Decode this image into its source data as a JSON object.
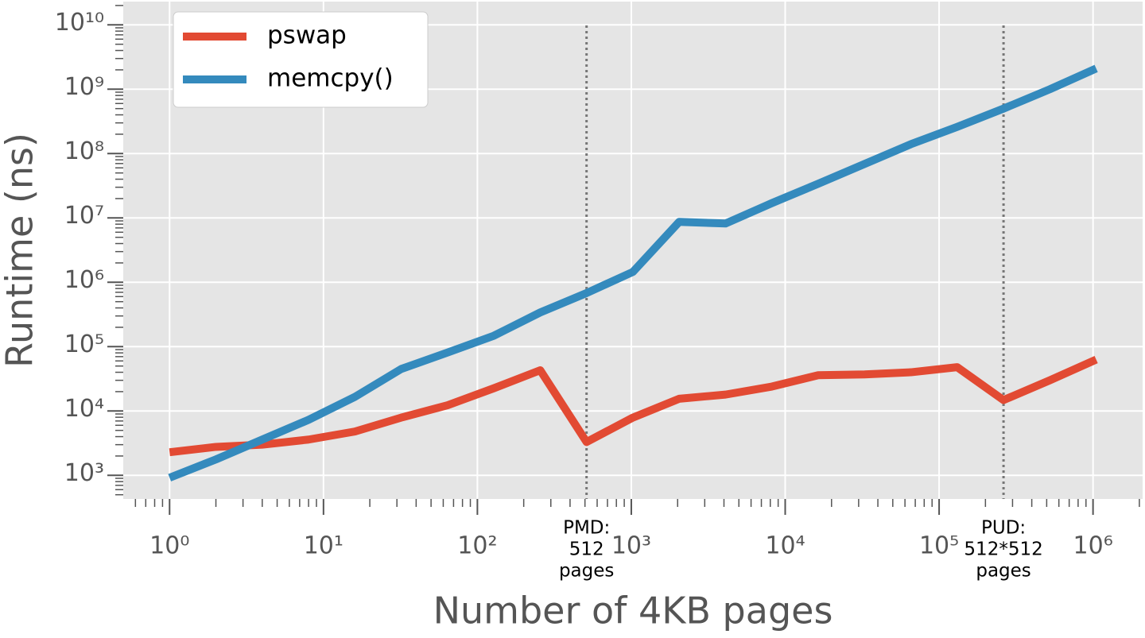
{
  "chart_data": {
    "type": "line",
    "x_label": "Number of 4KB pages",
    "y_label": "Runtime (ns)",
    "x": [
      1,
      2,
      4,
      8,
      16,
      32,
      64,
      128,
      256,
      512,
      1024,
      2048,
      4096,
      8192,
      16384,
      32768,
      65536,
      131072,
      262144,
      524288,
      1048576
    ],
    "series": [
      {
        "name": "pswap",
        "color": "#e24a33",
        "values": [
          2290,
          2770,
          3000,
          3600,
          4800,
          7900,
          12300,
          22600,
          43000,
          3300,
          7900,
          15500,
          18000,
          24000,
          36000,
          37000,
          40000,
          48000,
          14800,
          30000,
          63000
        ]
      },
      {
        "name": "memcpy()",
        "color": "#348abd",
        "values": [
          920,
          1770,
          3600,
          7300,
          16600,
          45000,
          81000,
          148000,
          340000,
          680000,
          1450000,
          8700000,
          8200000,
          17000000,
          34000000,
          69000000,
          140000000,
          260000000,
          500000000,
          1000000000,
          2100000000
        ]
      }
    ],
    "xscale": "log",
    "yscale": "log",
    "xlim": [
      0.5,
      2100000
    ],
    "ylim": [
      430,
      23000000000
    ],
    "xticks": [
      {
        "value": 1,
        "label": "10⁰"
      },
      {
        "value": 10,
        "label": "10¹"
      },
      {
        "value": 100,
        "label": "10²"
      },
      {
        "value": 1000,
        "label": "10³"
      },
      {
        "value": 10000,
        "label": "10⁴"
      },
      {
        "value": 100000,
        "label": "10⁵"
      },
      {
        "value": 1000000,
        "label": "10⁶"
      }
    ],
    "yticks": [
      {
        "value": 1000,
        "label": "10³"
      },
      {
        "value": 10000,
        "label": "10⁴"
      },
      {
        "value": 100000,
        "label": "10⁵"
      },
      {
        "value": 1000000,
        "label": "10⁶"
      },
      {
        "value": 10000000,
        "label": "10⁷"
      },
      {
        "value": 100000000,
        "label": "10⁸"
      },
      {
        "value": 1000000000,
        "label": "10⁹"
      },
      {
        "value": 10000000000,
        "label": "10¹⁰"
      }
    ],
    "grid": true,
    "legend": "upper left",
    "annotations": [
      {
        "x": 512,
        "text": [
          "PMD:",
          "512",
          "pages"
        ]
      },
      {
        "x": 262144,
        "text": [
          "PUD:",
          "512*512",
          "pages"
        ]
      }
    ]
  }
}
